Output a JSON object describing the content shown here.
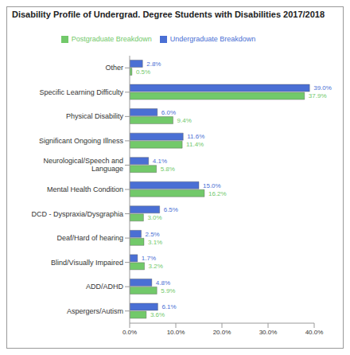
{
  "chart_data": {
    "type": "bar",
    "orientation": "horizontal",
    "title": "Disability Profile of Undergrad. Degree Students with Disabilities 2017/2018",
    "categories": [
      "Other",
      "Specific Learning Difficulty",
      "Physical Disability",
      "Significant Ongoing Illness",
      "Neurological/Speech and Language",
      "Mental Health Condition",
      "DCD - Dyspraxia/Dysgraphia",
      "Deaf/Hard of hearing",
      "Blind/Visually Impaired",
      "ADD/ADHD",
      "Aspergers/Autism"
    ],
    "series": [
      {
        "name": "Undergraduate Breakdown",
        "color": "#4a6fd4",
        "values": [
          2.8,
          39.0,
          6.0,
          11.6,
          4.1,
          15.0,
          6.5,
          2.5,
          1.7,
          4.8,
          6.1
        ],
        "value_labels": [
          "2.8%",
          "39.0%",
          "6.0%",
          "11.6%",
          "4.1%",
          "15.0%",
          "6.5%",
          "2.5%",
          "1.7%",
          "4.8%",
          "6.1%"
        ]
      },
      {
        "name": "Postgraduate Breakdown",
        "color": "#72c96a",
        "values": [
          0.5,
          37.9,
          9.4,
          11.4,
          5.8,
          16.2,
          3.0,
          3.1,
          3.2,
          5.9,
          3.6
        ],
        "value_labels": [
          "0.5%",
          "37.9%",
          "9.4%",
          "11.4%",
          "5.8%",
          "16.2%",
          "3.0%",
          "3.1%",
          "3.2%",
          "5.9%",
          "3.6%"
        ]
      }
    ],
    "xlim": [
      0,
      40
    ],
    "xticks": [
      {
        "value": 0,
        "label": "0.0%"
      },
      {
        "value": 10,
        "label": "10.0%"
      },
      {
        "value": 20,
        "label": "20.0%"
      },
      {
        "value": 30,
        "label": "30.0%"
      },
      {
        "value": 40,
        "label": "40.0%"
      }
    ],
    "grid": false,
    "legend": "top",
    "data_labels": true
  }
}
